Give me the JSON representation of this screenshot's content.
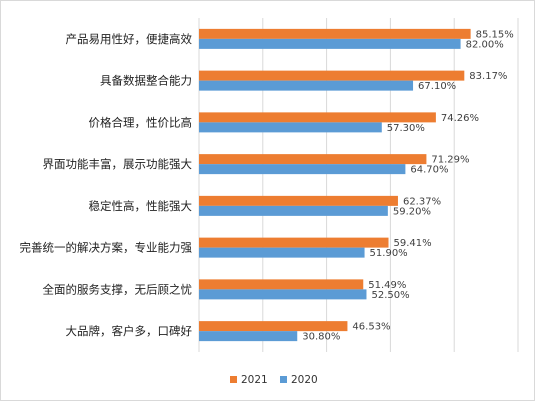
{
  "chart_data": {
    "type": "bar",
    "orientation": "horizontal",
    "title": "",
    "xlabel": "",
    "ylabel": "",
    "xlim": [
      0,
      100
    ],
    "grid": true,
    "legend_position": "bottom",
    "categories": [
      "产品易用性好，便捷高效",
      "具备数据整合能力",
      "价格合理，性价比高",
      "界面功能丰富，展示功能强大",
      "稳定性高，性能强大",
      "完善统一的解决方案，专业能力强",
      "全面的服务支撑，无后顾之忧",
      "大品牌，客户多，口碑好"
    ],
    "series": [
      {
        "name": "2021",
        "color": "#ed7d31",
        "values": [
          85.15,
          83.17,
          74.26,
          71.29,
          62.37,
          59.41,
          51.49,
          46.53
        ],
        "labels": [
          "85.15%",
          "83.17%",
          "74.26%",
          "71.29%",
          "62.37%",
          "59.41%",
          "51.49%",
          "46.53%"
        ]
      },
      {
        "name": "2020",
        "color": "#5b9bd5",
        "values": [
          82.0,
          67.1,
          57.3,
          64.7,
          59.2,
          51.9,
          52.5,
          30.8
        ],
        "labels": [
          "82.00%",
          "67.10%",
          "57.30%",
          "64.70%",
          "59.20%",
          "51.90%",
          "52.50%",
          "30.80%"
        ]
      }
    ]
  }
}
